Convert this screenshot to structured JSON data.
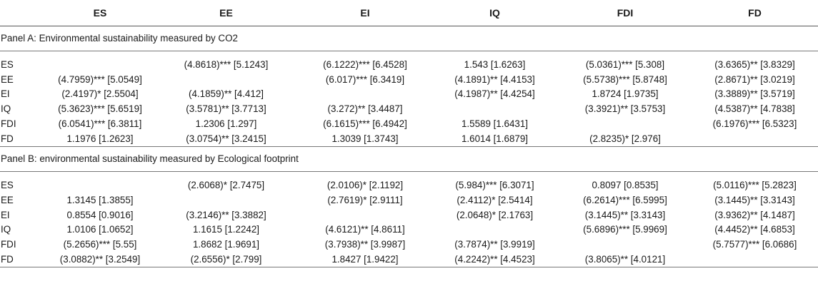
{
  "columns": [
    "",
    "ES",
    "EE",
    "EI",
    "IQ",
    "FDI",
    "FD"
  ],
  "panelA": {
    "title": "Panel A: Environmental sustainability measured by CO2",
    "rows": [
      {
        "label": "ES",
        "cells": [
          "",
          "(4.8618)*** [5.1243]",
          "(6.1222)*** [6.4528]",
          "1.543 [1.6263]",
          "(5.0361)*** [5.308]",
          "(3.6365)** [3.8329]"
        ]
      },
      {
        "label": "EE",
        "cells": [
          "(4.7959)*** [5.0549]",
          "",
          "(6.017)*** [6.3419]",
          "(4.1891)** [4.4153]",
          "(5.5738)*** [5.8748]",
          "(2.8671)** [3.0219]"
        ]
      },
      {
        "label": "EI",
        "cells": [
          "(2.4197)* [2.5504]",
          "(4.1859)** [4.412]",
          "",
          "(4.1987)** [4.4254]",
          "1.8724 [1.9735]",
          "(3.3889)** [3.5719]"
        ]
      },
      {
        "label": "IQ",
        "cells": [
          "(5.3623)*** [5.6519]",
          "(3.5781)** [3.7713]",
          "(3.272)** [3.4487]",
          "",
          "(3.3921)** [3.5753]",
          "(4.5387)** [4.7838]"
        ]
      },
      {
        "label": "FDI",
        "cells": [
          "(6.0541)*** [6.3811]",
          "1.2306 [1.297]",
          "(6.1615)*** [6.4942]",
          "1.5589 [1.6431]",
          "",
          "(6.1976)*** [6.5323]"
        ]
      },
      {
        "label": "FD",
        "cells": [
          "1.1976 [1.2623]",
          "(3.0754)** [3.2415]",
          "1.3039 [1.3743]",
          "1.6014 [1.6879]",
          "(2.8235)* [2.976]",
          ""
        ]
      }
    ]
  },
  "panelB": {
    "title": "Panel B: environmental sustainability measured by Ecological footprint",
    "rows": [
      {
        "label": "ES",
        "cells": [
          "",
          "(2.6068)* [2.7475]",
          "(2.0106)* [2.1192]",
          "(5.984)*** [6.3071]",
          "0.8097 [0.8535]",
          "(5.0116)*** [5.2823]"
        ]
      },
      {
        "label": "EE",
        "cells": [
          "1.3145 [1.3855]",
          "",
          "(2.7619)* [2.9111]",
          "(2.4112)* [2.5414]",
          "(6.2614)*** [6.5995]",
          "(3.1445)** [3.3143]"
        ]
      },
      {
        "label": "EI",
        "cells": [
          "0.8554 [0.9016]",
          "(3.2146)** [3.3882]",
          "",
          "(2.0648)* [2.1763]",
          "(3.1445)** [3.3143]",
          "(3.9362)** [4.1487]"
        ]
      },
      {
        "label": "IQ",
        "cells": [
          "1.0106 [1.0652]",
          "1.1615 [1.2242]",
          "(4.6121)** [4.8611]",
          "",
          "(5.6896)*** [5.9969]",
          "(4.4452)** [4.6853]"
        ]
      },
      {
        "label": "FDI",
        "cells": [
          "(5.2656)*** [5.55]",
          "1.8682 [1.9691]",
          "(3.7938)** [3.9987]",
          "(3.7874)** [3.9919]",
          "",
          "(5.7577)*** [6.0686]"
        ]
      },
      {
        "label": "FD",
        "cells": [
          "(3.0882)** [3.2549]",
          "(2.6556)* [2.799]",
          "1.8427 [1.9422]",
          "(4.2242)** [4.4523]",
          "(3.8065)** [4.0121]",
          ""
        ]
      }
    ]
  }
}
